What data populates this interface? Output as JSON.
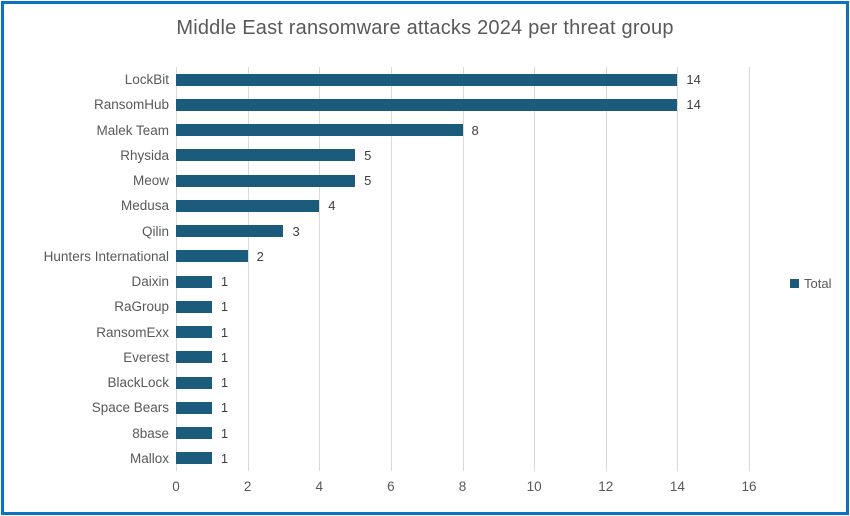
{
  "chart_data": {
    "type": "bar",
    "orientation": "horizontal",
    "title": "Middle East ransomware attacks 2024 per threat group",
    "series_name": "Total",
    "categories": [
      "LockBit",
      "RansomHub",
      "Malek Team",
      "Rhysida",
      "Meow",
      "Medusa",
      "Qilin",
      "Hunters International",
      "Daixin",
      "RaGroup",
      "RansomExx",
      "Everest",
      "BlackLock",
      "Space Bears",
      "8base",
      "Mallox"
    ],
    "values": [
      14,
      14,
      8,
      5,
      5,
      4,
      3,
      2,
      1,
      1,
      1,
      1,
      1,
      1,
      1,
      1
    ],
    "xlabel": "",
    "ylabel": "",
    "xlim": [
      0,
      16
    ],
    "xticks": [
      0,
      2,
      4,
      6,
      8,
      10,
      12,
      14,
      16
    ],
    "grid": true,
    "data_labels": true,
    "legend_position": "right",
    "colors": {
      "bar": "#1b5b7b",
      "title": "#595959",
      "axis_text": "#595959",
      "label_text": "#404040",
      "gridline": "#d9d9d9",
      "border": "#0b72c2",
      "background": "#ffffff"
    }
  }
}
